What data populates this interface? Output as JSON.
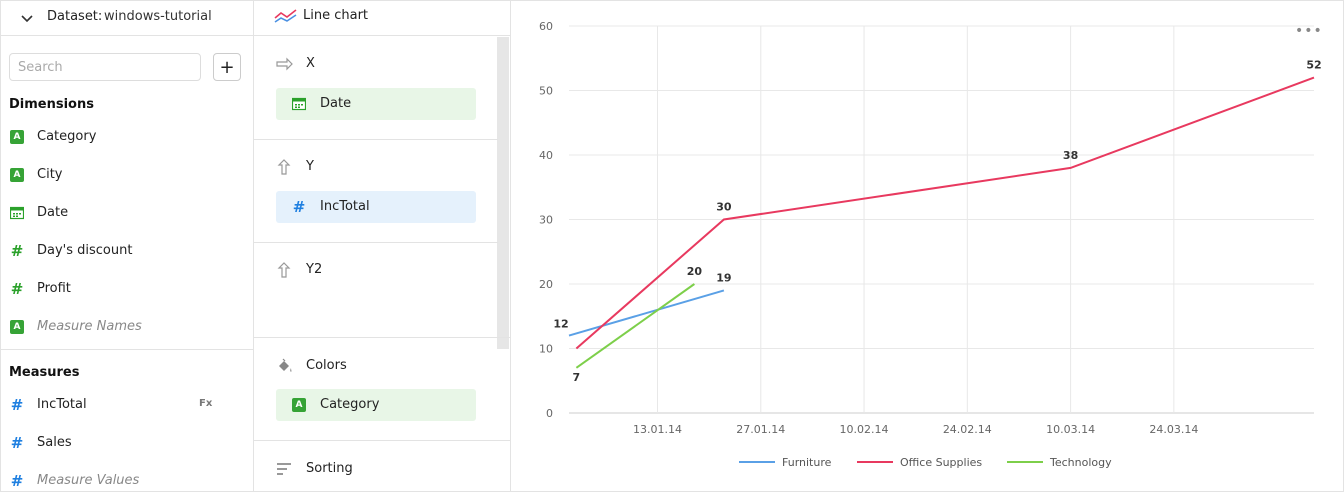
{
  "dataset": {
    "label": "Dataset:",
    "name": "windows-tutorial"
  },
  "search": {
    "placeholder": "Search",
    "value": "",
    "add_label": "+"
  },
  "dimensions": {
    "title": "Dimensions",
    "items": [
      {
        "label": "Category",
        "type": "string"
      },
      {
        "label": "City",
        "type": "string"
      },
      {
        "label": "Date",
        "type": "date"
      },
      {
        "label": "Day's discount",
        "type": "number"
      },
      {
        "label": "Profit",
        "type": "number"
      },
      {
        "label": "Measure Names",
        "type": "string"
      }
    ]
  },
  "measures": {
    "title": "Measures",
    "items": [
      {
        "label": "IncTotal",
        "type": "number",
        "badge": "Fx"
      },
      {
        "label": "Sales",
        "type": "number"
      },
      {
        "label": "Measure Values",
        "type": "number"
      }
    ]
  },
  "visualization": {
    "type_label": "Line chart",
    "slots": {
      "x": {
        "title": "X",
        "field": "Date"
      },
      "y": {
        "title": "Y",
        "field": "IncTotal"
      },
      "y2": {
        "title": "Y2"
      },
      "colors": {
        "title": "Colors",
        "field": "Category"
      },
      "sorting": {
        "title": "Sorting"
      }
    }
  },
  "colors": {
    "furniture": "#5aa0e6",
    "office_supplies": "#e8395f",
    "technology": "#7dcf4a",
    "accent_green": "#36a336",
    "accent_blue": "#1e7fe0"
  },
  "chart_data": {
    "type": "line",
    "ylim": [
      0,
      60
    ],
    "yticks": [
      0,
      10,
      20,
      30,
      40,
      50,
      60
    ],
    "xlim": [
      "2014-01-01",
      "2014-04-12"
    ],
    "xticks": [
      {
        "date": "2014-01-13",
        "label": "13.01.14"
      },
      {
        "date": "2014-01-27",
        "label": "27.01.14"
      },
      {
        "date": "2014-02-10",
        "label": "10.02.14"
      },
      {
        "date": "2014-02-24",
        "label": "24.02.14"
      },
      {
        "date": "2014-03-10",
        "label": "10.03.14"
      },
      {
        "date": "2014-03-24",
        "label": "24.03.14"
      }
    ],
    "grid": true,
    "legend_position": "bottom",
    "series": [
      {
        "name": "Furniture",
        "color": "#5aa0e6",
        "points": [
          [
            "2014-01-01",
            12
          ],
          [
            "2014-01-22",
            19
          ]
        ],
        "labels": [
          12,
          19
        ]
      },
      {
        "name": "Office Supplies",
        "color": "#e8395f",
        "points": [
          [
            "2014-01-02",
            10
          ],
          [
            "2014-01-22",
            30
          ],
          [
            "2014-03-10",
            38
          ],
          [
            "2014-04-12",
            52
          ]
        ],
        "labels": [
          null,
          30,
          38,
          52
        ]
      },
      {
        "name": "Technology",
        "color": "#7dcf4a",
        "points": [
          [
            "2014-01-02",
            7
          ],
          [
            "2014-01-18",
            20
          ]
        ],
        "labels": [
          7,
          20
        ]
      }
    ]
  }
}
